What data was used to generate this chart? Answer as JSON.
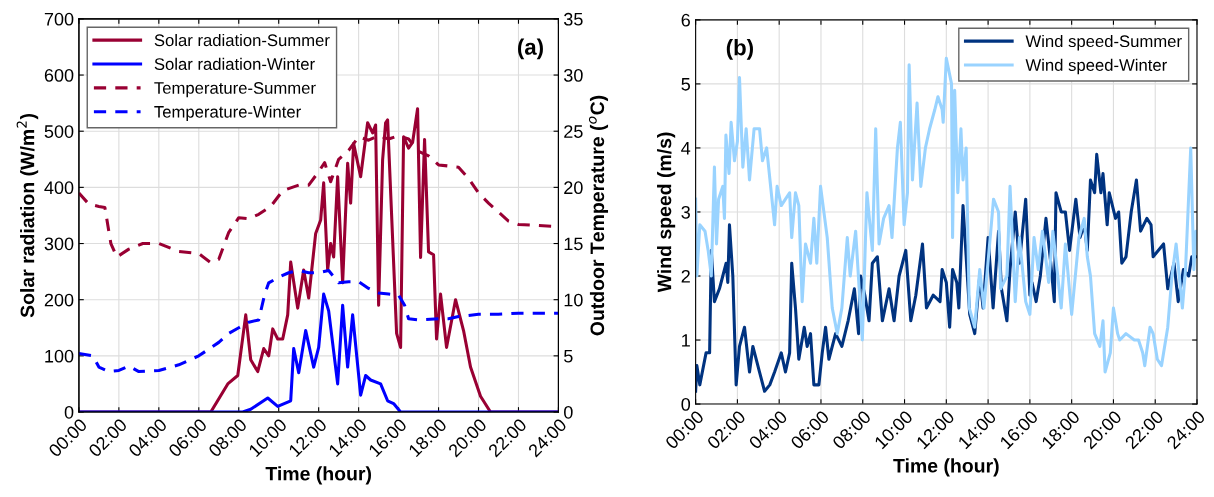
{
  "chart_data": [
    {
      "type": "line",
      "xlabel": "Time (hour)",
      "ylabel": "Solar radiation (W/m$^{2}$)",
      "y2label": "Outdoor Temperature ($^{o}$C)",
      "annotations": [
        "(a)"
      ],
      "xlim": [
        0,
        24
      ],
      "xticks": [
        {
          "value": 0,
          "label": "00:00"
        },
        {
          "value": 2,
          "label": "02:00"
        },
        {
          "value": 4,
          "label": "04:00"
        },
        {
          "value": 6,
          "label": "06:00"
        },
        {
          "value": 8,
          "label": "08:00"
        },
        {
          "value": 10,
          "label": "10:00"
        },
        {
          "value": 12,
          "label": "12:00"
        },
        {
          "value": 14,
          "label": "14:00"
        },
        {
          "value": 16,
          "label": "16:00"
        },
        {
          "value": 18,
          "label": "18:00"
        },
        {
          "value": 20,
          "label": "20:00"
        },
        {
          "value": 22,
          "label": "22:00"
        },
        {
          "value": 24,
          "label": "24:00"
        }
      ],
      "ylim": [
        0,
        700
      ],
      "yticks": [
        0,
        100,
        200,
        300,
        400,
        500,
        600,
        700
      ],
      "y2lim": [
        0,
        35
      ],
      "y2ticks": [
        0,
        5,
        10,
        15,
        20,
        25,
        30,
        35
      ],
      "grid": true,
      "legend": "top left",
      "series": [
        {
          "name": "Solar radiation-Summer",
          "color": "#990033",
          "line_style": "solid",
          "x": [
            0,
            6.6,
            7.45,
            7.95,
            8.35,
            8.6,
            8.95,
            9.25,
            9.5,
            9.7,
            9.95,
            10.2,
            10.45,
            10.6,
            10.95,
            11.25,
            11.5,
            11.85,
            12.1,
            12.25,
            12.45,
            12.6,
            12.75,
            12.95,
            13.2,
            13.45,
            13.6,
            13.75,
            14.1,
            14.45,
            14.7,
            14.85,
            15.0,
            15.2,
            15.35,
            15.45,
            15.9,
            16.1,
            16.25,
            16.5,
            16.7,
            16.95,
            17.1,
            17.3,
            17.5,
            17.75,
            17.9,
            18.1,
            18.4,
            18.85,
            19.25,
            19.6,
            20.1,
            20.6,
            24
          ],
          "values": [
            0,
            0,
            50,
            65,
            173,
            93,
            72,
            113,
            100,
            148,
            130,
            130,
            173,
            267,
            185,
            253,
            203,
            318,
            342,
            408,
            253,
            300,
            276,
            419,
            230,
            443,
            372,
            478,
            419,
            515,
            497,
            511,
            190,
            449,
            515,
            520,
            140,
            115,
            490,
            470,
            480,
            540,
            275,
            485,
            285,
            280,
            130,
            210,
            115,
            200,
            145,
            80,
            28,
            0,
            0
          ]
        },
        {
          "name": "Solar radiation-Winter",
          "color": "#0000ff",
          "line_style": "solid",
          "x": [
            0,
            8.2,
            8.6,
            9.45,
            9.95,
            10.6,
            10.75,
            11.0,
            11.35,
            11.75,
            12.0,
            12.25,
            12.5,
            12.95,
            13.2,
            13.45,
            13.7,
            14.1,
            14.35,
            14.6,
            15.1,
            15.45,
            15.75,
            16.1,
            24
          ],
          "values": [
            0,
            0,
            5,
            25,
            10,
            20,
            113,
            70,
            145,
            80,
            115,
            210,
            180,
            50,
            190,
            80,
            173,
            30,
            65,
            57,
            50,
            20,
            15,
            0,
            0
          ]
        },
        {
          "name": "Temperature-Summer",
          "color": "#990033",
          "line_style": "dashed",
          "axis": "y2",
          "x": [
            0,
            0.5,
            1.0,
            1.3,
            1.6,
            1.9,
            2.5,
            3.2,
            4.0,
            5.0,
            6.0,
            6.6,
            7.0,
            7.5,
            8.0,
            8.5,
            9.0,
            9.6,
            10.2,
            11.0,
            11.5,
            12.0,
            12.3,
            12.6,
            13.0,
            13.5,
            14.0,
            14.5,
            15.0,
            15.5,
            16.0,
            16.5,
            17.0,
            17.5,
            18.0,
            18.5,
            19.0,
            19.5,
            20.0,
            20.5,
            21.0,
            21.5,
            22.0,
            23.0,
            24.0
          ],
          "values": [
            19.5,
            18.5,
            18.3,
            18.2,
            15,
            13.8,
            14.5,
            15,
            15,
            14.3,
            14.1,
            13.3,
            13.6,
            16,
            17.3,
            17.2,
            17.6,
            18.3,
            19.7,
            20.2,
            20.2,
            21.4,
            22.2,
            20.5,
            22.5,
            23.3,
            24.5,
            24.2,
            24.6,
            24.3,
            24.6,
            24.3,
            23.2,
            22.8,
            22,
            21.9,
            21.8,
            20.8,
            19.5,
            18.6,
            17.8,
            17,
            16.7,
            16.6,
            16.5
          ]
        },
        {
          "name": "Temperature-Winter",
          "color": "#0000ff",
          "line_style": "dashed",
          "axis": "y2",
          "x": [
            0,
            0.7,
            1.0,
            1.5,
            2.0,
            2.5,
            3.0,
            4.0,
            5.0,
            6.0,
            7.0,
            7.5,
            8.0,
            8.5,
            9.0,
            9.3,
            9.5,
            10.0,
            10.5,
            11.0,
            11.5,
            12.0,
            12.5,
            13.0,
            13.5,
            14.0,
            14.5,
            15.0,
            15.5,
            16.0,
            16.3,
            16.5,
            17.0,
            18.0,
            18.5,
            19.0,
            20.0,
            21.0,
            22.0,
            23.0,
            24.0
          ],
          "values": [
            5.2,
            5,
            4,
            3.6,
            3.7,
            4.1,
            3.6,
            3.7,
            4.2,
            5,
            6.2,
            7,
            7.5,
            8,
            8.2,
            10.5,
            11.5,
            12,
            12.4,
            12.6,
            12.4,
            12.4,
            12.6,
            11.5,
            11.6,
            11.6,
            11,
            10.6,
            10.5,
            10.4,
            9.5,
            8.3,
            8.2,
            8.3,
            8.3,
            8.5,
            8.7,
            8.7,
            8.8,
            8.8,
            8.8
          ]
        }
      ]
    },
    {
      "type": "line",
      "xlabel": "Time (hour)",
      "ylabel": "Wind speed (m/s)",
      "annotations": [
        "(b)"
      ],
      "xlim": [
        0,
        24
      ],
      "xticks": [
        {
          "value": 0,
          "label": "00:00"
        },
        {
          "value": 2,
          "label": "02:00"
        },
        {
          "value": 4,
          "label": "04:00"
        },
        {
          "value": 6,
          "label": "06:00"
        },
        {
          "value": 8,
          "label": "08:00"
        },
        {
          "value": 10,
          "label": "10:00"
        },
        {
          "value": 12,
          "label": "12:00"
        },
        {
          "value": 14,
          "label": "14:00"
        },
        {
          "value": 16,
          "label": "16:00"
        },
        {
          "value": 18,
          "label": "18:00"
        },
        {
          "value": 20,
          "label": "20:00"
        },
        {
          "value": 22,
          "label": "22:00"
        },
        {
          "value": 24,
          "label": "24:00"
        }
      ],
      "ylim": [
        0,
        6
      ],
      "yticks": [
        0,
        1,
        2,
        3,
        4,
        5,
        6
      ],
      "grid": true,
      "legend": "top right",
      "series": [
        {
          "name": "Wind speed-Summer",
          "color": "#003380",
          "line_style": "solid",
          "x": [
            0,
            0.06,
            0.2,
            0.5,
            0.67,
            0.75,
            0.9,
            1.14,
            1.3,
            1.46,
            1.54,
            1.62,
            1.78,
            1.94,
            2.1,
            2.34,
            2.58,
            2.74,
            3.06,
            3.3,
            3.55,
            3.78,
            4.1,
            4.3,
            4.5,
            4.6,
            4.78,
            4.94,
            5.2,
            5.34,
            5.5,
            5.66,
            5.9,
            6.06,
            6.22,
            6.38,
            6.7,
            7.0,
            7.3,
            7.6,
            7.8,
            7.9,
            8.1,
            8.3,
            8.46,
            8.7,
            8.94,
            9.26,
            9.5,
            9.74,
            10.06,
            10.3,
            10.54,
            10.86,
            11.05,
            11.37,
            11.7,
            11.8,
            12.0,
            12.16,
            12.3,
            12.5,
            12.6,
            12.8,
            13.12,
            13.36,
            13.6,
            13.76,
            14.0,
            14.24,
            14.5,
            14.64,
            14.9,
            15.05,
            15.3,
            15.5,
            15.8,
            16.0,
            16.1,
            16.3,
            16.5,
            16.77,
            17.0,
            17.17,
            17.25,
            17.5,
            17.7,
            17.9,
            18.2,
            18.4,
            18.6,
            18.75,
            18.9,
            19.1,
            19.2,
            19.4,
            19.5,
            19.7,
            19.8,
            20.1,
            20.25,
            20.4,
            20.6,
            20.85,
            21.1,
            21.3,
            21.6,
            21.8,
            21.9,
            22.4,
            22.6,
            22.9,
            23.1,
            23.35,
            23.6,
            23.75,
            24.0
          ],
          "values": [
            0.2,
            0.6,
            0.3,
            0.8,
            0.8,
            2.4,
            1.6,
            1.8,
            2.0,
            2.2,
            1.9,
            2.8,
            2.0,
            0.3,
            0.9,
            1.2,
            0.5,
            0.9,
            0.5,
            0.2,
            0.3,
            0.5,
            0.8,
            0.5,
            0.8,
            2.2,
            1.5,
            0.7,
            1.2,
            0.9,
            1.1,
            0.3,
            0.3,
            0.8,
            1.2,
            0.7,
            1.1,
            0.9,
            1.3,
            1.8,
            1.1,
            2.0,
            1.7,
            1.3,
            2.2,
            2.3,
            1.3,
            1.8,
            1.3,
            2.0,
            2.4,
            1.3,
            1.7,
            2.5,
            1.5,
            1.7,
            1.6,
            2.1,
            1.9,
            1.2,
            2.1,
            1.9,
            1.5,
            3.1,
            1.4,
            1.1,
            2.0,
            1.5,
            2.6,
            1.5,
            2.7,
            1.8,
            1.3,
            2.1,
            3.0,
            2.2,
            3.2,
            1.7,
            1.9,
            1.6,
            2.0,
            2.9,
            2.2,
            1.6,
            3.3,
            3.0,
            3.0,
            2.4,
            3.2,
            2.6,
            2.8,
            2.4,
            3.5,
            3.3,
            3.9,
            3.3,
            3.6,
            2.8,
            3.3,
            2.9,
            3.0,
            2.2,
            2.3,
            3.0,
            3.5,
            2.7,
            2.9,
            2.8,
            2.3,
            2.5,
            1.8,
            2.2,
            1.6,
            2.1,
            2.0,
            2.3,
            2.3
          ]
        },
        {
          "name": "Wind speed-Winter",
          "color": "#99d3ff",
          "line_style": "solid",
          "x": [
            0,
            0.06,
            0.2,
            0.45,
            0.6,
            0.75,
            0.9,
            1.0,
            1.1,
            1.3,
            1.38,
            1.45,
            1.6,
            1.7,
            1.86,
            2.0,
            2.1,
            2.26,
            2.42,
            2.58,
            2.8,
            3.06,
            3.2,
            3.4,
            3.78,
            3.9,
            4.1,
            4.3,
            4.5,
            4.6,
            4.78,
            4.94,
            5.1,
            5.26,
            5.5,
            5.66,
            5.8,
            5.98,
            6.3,
            6.54,
            6.78,
            7.0,
            7.26,
            7.4,
            7.66,
            7.98,
            8.2,
            8.46,
            8.62,
            8.78,
            9.0,
            9.26,
            9.4,
            9.66,
            9.8,
            9.98,
            10.14,
            10.22,
            10.38,
            10.6,
            10.78,
            11.0,
            11.2,
            11.45,
            11.6,
            11.8,
            11.85,
            12.0,
            12.25,
            12.3,
            12.4,
            12.55,
            12.7,
            12.8,
            12.95,
            13.1,
            13.36,
            13.6,
            13.8,
            14.1,
            14.26,
            14.5,
            14.6,
            14.9,
            15.05,
            15.3,
            15.5,
            15.8,
            16.0,
            16.2,
            16.4,
            16.6,
            16.9,
            17.1,
            17.3,
            17.5,
            17.7,
            18.0,
            18.35,
            18.6,
            18.75,
            18.9,
            19.1,
            19.35,
            19.5,
            19.6,
            19.85,
            20.0,
            20.2,
            20.3,
            20.6,
            21.0,
            21.2,
            21.4,
            21.5,
            21.75,
            21.9,
            22.1,
            22.3,
            22.6,
            22.8,
            23.0,
            23.3,
            23.45,
            23.7,
            23.85,
            23.95,
            24.0
          ],
          "values": [
            3.2,
            2.0,
            2.8,
            2.7,
            2.4,
            2.0,
            3.7,
            2.5,
            3.2,
            3.4,
            2.9,
            4.2,
            3.6,
            4.4,
            3.8,
            4.1,
            5.1,
            3.7,
            4.3,
            3.5,
            4.3,
            4.3,
            3.8,
            4.0,
            2.8,
            3.4,
            3.1,
            3.2,
            3.3,
            2.6,
            3.3,
            3.1,
            1.6,
            2.5,
            2.2,
            2.9,
            2.2,
            3.4,
            2.6,
            1.5,
            1.1,
            1.5,
            2.6,
            2.0,
            2.7,
            1.0,
            3.3,
            2.4,
            4.3,
            2.5,
            2.9,
            3.1,
            2.6,
            4.0,
            4.4,
            2.8,
            3.3,
            5.3,
            3.5,
            4.7,
            3.4,
            4.0,
            4.3,
            4.6,
            4.8,
            4.6,
            4.4,
            5.4,
            5.0,
            2.6,
            4.9,
            3.3,
            4.3,
            3.5,
            4.0,
            1.5,
            1.2,
            2.1,
            1.5,
            2.6,
            3.2,
            3.0,
            1.8,
            2.0,
            3.4,
            1.6,
            2.6,
            1.6,
            1.4,
            2.6,
            2.1,
            2.7,
            1.9,
            2.7,
            2.1,
            1.5,
            2.5,
            1.4,
            2.6,
            2.9,
            2.3,
            2.0,
            1.1,
            0.9,
            1.3,
            0.5,
            0.8,
            1.5,
            1.1,
            1.0,
            1.1,
            1.0,
            1.0,
            0.8,
            0.6,
            1.2,
            1.1,
            0.7,
            0.6,
            1.2,
            2.0,
            2.5,
            1.5,
            2.1,
            4.0,
            2.1,
            2.7,
            2.6
          ]
        }
      ]
    }
  ]
}
